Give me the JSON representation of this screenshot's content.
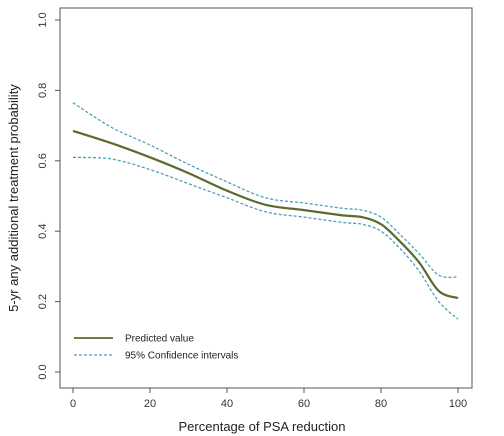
{
  "chart_data": {
    "type": "line",
    "title": "",
    "xlabel": "Percentage of PSA reduction",
    "ylabel": "5-yr any additional treatment probability",
    "xlim": [
      0,
      100
    ],
    "ylim": [
      0,
      1
    ],
    "xticks": [
      "0",
      "20",
      "40",
      "60",
      "80",
      "100"
    ],
    "yticks": [
      "0.0",
      "0.2",
      "0.4",
      "0.6",
      "0.8",
      "1.0"
    ],
    "grid": false,
    "legend_position": "bottom-left",
    "series": [
      {
        "name": "Predicted value",
        "style": "solid",
        "color": "#5a6b2e",
        "x": [
          0,
          10,
          20,
          30,
          40,
          50,
          60,
          70,
          75,
          80,
          85,
          90,
          95,
          100
        ],
        "y": [
          0.685,
          0.65,
          0.61,
          0.565,
          0.515,
          0.475,
          0.46,
          0.445,
          0.44,
          0.42,
          0.37,
          0.31,
          0.23,
          0.21
        ]
      },
      {
        "name": "95% Confidence intervals",
        "style": "dashed",
        "color": "#4aa3b5",
        "x": [
          0,
          10,
          20,
          30,
          40,
          50,
          60,
          70,
          75,
          80,
          85,
          90,
          95,
          100
        ],
        "y": [
          0.765,
          0.695,
          0.645,
          0.59,
          0.54,
          0.495,
          0.48,
          0.465,
          0.46,
          0.44,
          0.39,
          0.335,
          0.275,
          0.27
        ]
      },
      {
        "name": "",
        "style": "dashed",
        "color": "#4aa3b5",
        "x": [
          0,
          10,
          20,
          30,
          40,
          50,
          60,
          70,
          75,
          80,
          85,
          90,
          95,
          100
        ],
        "y": [
          0.61,
          0.605,
          0.575,
          0.535,
          0.495,
          0.455,
          0.44,
          0.425,
          0.42,
          0.4,
          0.35,
          0.285,
          0.2,
          0.15
        ]
      }
    ],
    "legend": [
      {
        "label": "Predicted value",
        "style": "solid",
        "color": "#5a6b2e"
      },
      {
        "label": "95% Confidence intervals",
        "style": "dashed",
        "color": "#4aa3b5"
      }
    ]
  }
}
